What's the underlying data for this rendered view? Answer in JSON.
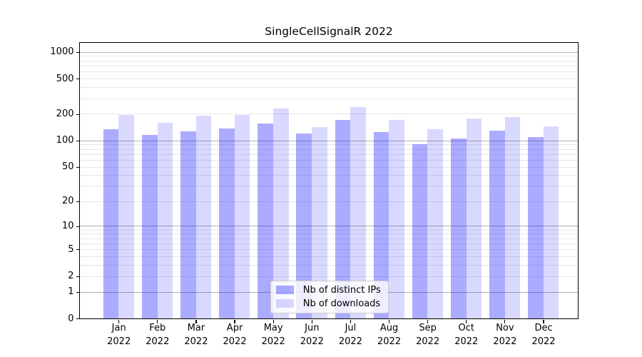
{
  "title": "SingleCellSignalR 2022",
  "chart_data": {
    "type": "bar",
    "title": "SingleCellSignalR 2022",
    "categories": [
      "Jan",
      "Feb",
      "Mar",
      "Apr",
      "May",
      "Jun",
      "Jul",
      "Aug",
      "Sep",
      "Oct",
      "Nov",
      "Dec"
    ],
    "category_sublabel": "2022",
    "series": [
      {
        "name": "Nb of distinct IPs",
        "key": "ips",
        "color": "rgba(0,0,255,0.33)",
        "values": [
          135,
          116,
          129,
          138,
          157,
          121,
          172,
          126,
          92,
          106,
          131,
          111
        ]
      },
      {
        "name": "Nb of downloads",
        "key": "downloads",
        "color": "rgba(0,0,255,0.15)",
        "values": [
          196,
          160,
          191,
          195,
          230,
          144,
          243,
          172,
          136,
          180,
          185,
          147
        ]
      }
    ],
    "yscale": "log1p",
    "yticks": [
      0,
      1,
      2,
      5,
      10,
      20,
      50,
      100,
      200,
      500,
      1000
    ],
    "grid_major_at": [
      1,
      10,
      100,
      1000
    ],
    "grid_minor_at": [
      2,
      3,
      4,
      5,
      6,
      7,
      8,
      9,
      20,
      30,
      40,
      50,
      60,
      70,
      80,
      90,
      200,
      300,
      400,
      500,
      600,
      700,
      800,
      900
    ],
    "ylim": [
      0,
      1276
    ],
    "grid": true,
    "legend_position": "lower center",
    "xlabel": "",
    "ylabel": ""
  },
  "colors": {
    "background": "#ffffff",
    "axis": "#000000",
    "grid_major": "#b2b2b2",
    "grid_minor": "#e7e7e7",
    "bar_ips": "rgba(0,0,255,0.33)",
    "bar_downloads": "rgba(0,0,255,0.15)",
    "legend_border": "#cccccc",
    "legend_background": "rgba(255,255,255,0.8)"
  }
}
